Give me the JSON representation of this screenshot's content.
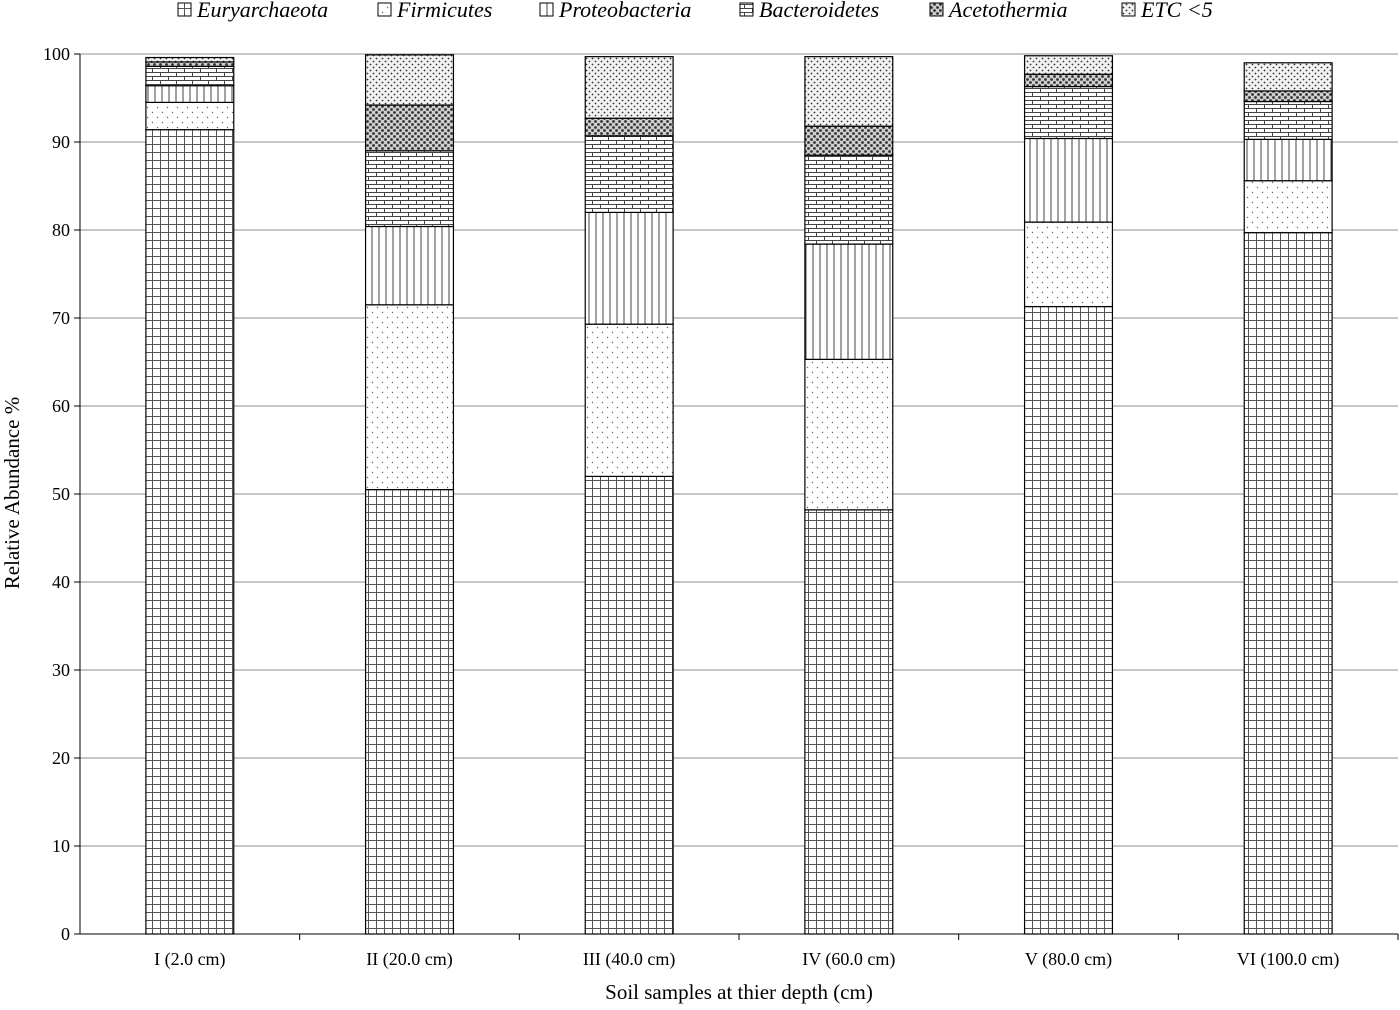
{
  "chart_data": {
    "type": "bar",
    "stacked": true,
    "title": "",
    "xlabel": "Soil samples at thier depth (cm)",
    "ylabel": "Relative  Abundance  %",
    "ylim": [
      0,
      100
    ],
    "yticks": [
      0,
      10,
      20,
      30,
      40,
      50,
      60,
      70,
      80,
      90,
      100
    ],
    "grid": "horizontal",
    "legend_position": "top",
    "categories": [
      "I (2.0 cm)",
      "II (20.0 cm)",
      "III (40.0 cm)",
      "IV (60.0 cm)",
      "V (80.0 cm)",
      "VI (100.0 cm)"
    ],
    "series": [
      {
        "name": "Euryarchaeota",
        "pattern": "grid",
        "values": [
          91.4,
          50.5,
          52.0,
          48.2,
          71.3,
          79.7
        ]
      },
      {
        "name": "Firmicutes",
        "pattern": "dots",
        "values": [
          3.1,
          21.0,
          17.3,
          17.1,
          9.6,
          5.9
        ]
      },
      {
        "name": "Proteobacteria",
        "pattern": "vertical-lines",
        "values": [
          1.9,
          8.9,
          12.7,
          13.1,
          9.5,
          4.7
        ]
      },
      {
        "name": "Bacteroidetes",
        "pattern": "bricks",
        "values": [
          2.2,
          8.6,
          8.7,
          10.1,
          5.9,
          4.3
        ]
      },
      {
        "name": "Acetothermia",
        "pattern": "dense-dots",
        "values": [
          0.5,
          5.2,
          2.0,
          3.3,
          1.4,
          1.2
        ]
      },
      {
        "name": "ETC <5",
        "pattern": "sparse-dots",
        "values": [
          0.5,
          5.7,
          7.0,
          7.9,
          2.1,
          3.2
        ]
      }
    ]
  }
}
